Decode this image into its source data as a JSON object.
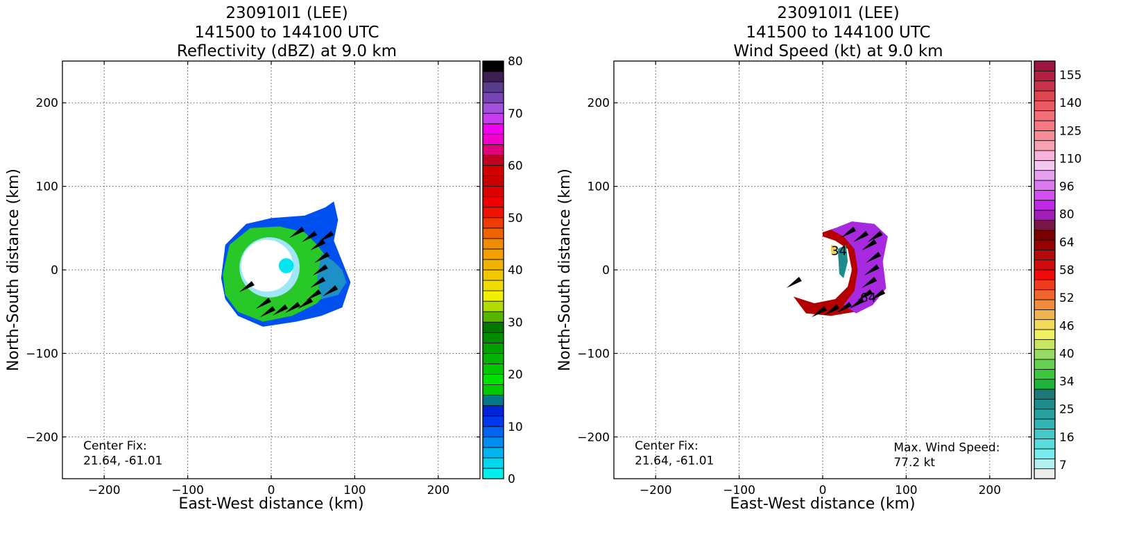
{
  "chart_data": [
    {
      "type": "heatmap",
      "title_lines": [
        "230910I1 (LEE)",
        "141500 to 144100 UTC",
        "Reflectivity (dBZ) at 9.0 km"
      ],
      "xlabel": "East-West distance (km)",
      "ylabel": "North-South distance (km)",
      "xlim": [
        -250,
        250
      ],
      "ylim": [
        -250,
        250
      ],
      "xticks": [
        -200,
        -100,
        0,
        100,
        200
      ],
      "yticks": [
        -200,
        -100,
        0,
        100,
        200
      ],
      "grid": true,
      "annotations": [
        {
          "text": "Center Fix:",
          "x": -225,
          "y": -215
        },
        {
          "text": "21.64, -61.01",
          "x": -225,
          "y": -233
        }
      ],
      "colorbar": {
        "min": 0,
        "max": 80,
        "ticks": [
          0,
          10,
          20,
          30,
          40,
          50,
          60,
          70,
          80
        ],
        "colors": [
          "#00f0f0",
          "#00d8f0",
          "#00b4f0",
          "#008ef0",
          "#0064f0",
          "#0038f0",
          "#0024d8",
          "#007888",
          "#00c800",
          "#00e000",
          "#00c800",
          "#00b400",
          "#00a000",
          "#008c00",
          "#007800",
          "#58b400",
          "#b4dc00",
          "#f0f000",
          "#f0dc00",
          "#f0c800",
          "#f0b400",
          "#f0a000",
          "#f08c00",
          "#f06400",
          "#f03c00",
          "#f01400",
          "#f00000",
          "#dc0000",
          "#c80000",
          "#d40000",
          "#c00020",
          "#e0007c",
          "#f000c8",
          "#f000f0",
          "#c83cf0",
          "#a050dc",
          "#7846b4",
          "#5a3c8c",
          "#3c1e50",
          "#000000"
        ]
      }
    },
    {
      "type": "heatmap",
      "title_lines": [
        "230910I1 (LEE)",
        "141500 to 144100 UTC",
        "Wind Speed (kt) at 9.0 km"
      ],
      "xlabel": "East-West distance (km)",
      "ylabel": "North-South distance (km)",
      "xlim": [
        -250,
        250
      ],
      "ylim": [
        -250,
        250
      ],
      "xticks": [
        -200,
        -100,
        0,
        100,
        200
      ],
      "yticks": [
        -200,
        -100,
        0,
        100,
        200
      ],
      "grid": true,
      "contour_labels": [
        "34",
        "64"
      ],
      "annotations": [
        {
          "text": "Center Fix:",
          "x": -225,
          "y": -215
        },
        {
          "text": "21.64, -61.01",
          "x": -225,
          "y": -233
        },
        {
          "text": "Max. Wind Speed:",
          "x": 85,
          "y": -217
        },
        {
          "text": "77.2 kt",
          "x": 85,
          "y": -235
        }
      ],
      "colorbar": {
        "ticks": [
          "7",
          "16",
          "25",
          "34",
          "40",
          "46",
          "52",
          "58",
          "64",
          "80",
          "96",
          "110",
          "125",
          "140",
          "155"
        ],
        "colors": [
          "#ececec",
          "#b4f0f0",
          "#78ecec",
          "#5adcdc",
          "#46c8c8",
          "#32b4b4",
          "#28a0a0",
          "#1e8c8c",
          "#1e7878",
          "#1eb43c",
          "#3cc83c",
          "#64d250",
          "#96dc64",
          "#c8e664",
          "#f0f064",
          "#f0dc5a",
          "#f0b450",
          "#f08c3c",
          "#f0642d",
          "#f03c1e",
          "#f00a0a",
          "#d20a0a",
          "#b40a0a",
          "#960000",
          "#780000",
          "#781446",
          "#a01eb4",
          "#be28e6",
          "#d250f0",
          "#dc78f0",
          "#e6a0f0",
          "#f0c8f0",
          "#f8b4dc",
          "#f8a0b4",
          "#f88c96",
          "#f87882",
          "#f46e78",
          "#ea5a64",
          "#dc4650",
          "#c8324a",
          "#b41e40",
          "#a01440"
        ]
      }
    }
  ]
}
